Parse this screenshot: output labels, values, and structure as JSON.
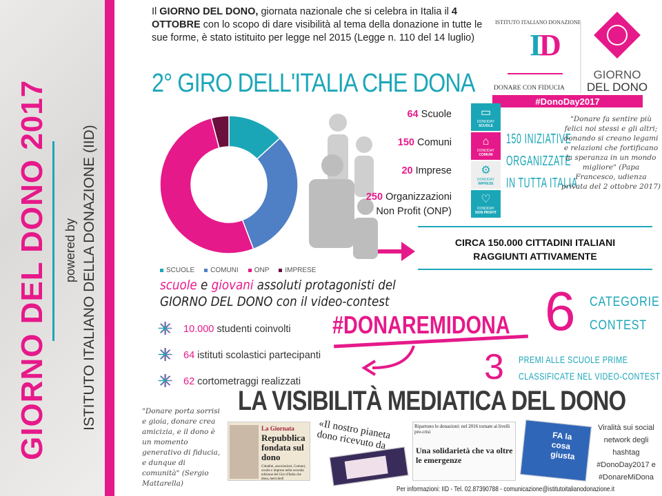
{
  "sidebar": {
    "title": "GIORNO DEL DONO 2017",
    "powered_by": "powered by",
    "institute": "ISTITUTO ITALIANO DELLA DONAZIONE (IID)"
  },
  "intro": {
    "p1": "Il ",
    "b1": "GIORNO DEL DONO,",
    "p2": " giornata nazionale che si celebra in Italia il ",
    "b2": "4 OTTOBRE",
    "p3": " con lo scopo di dare visibilità al tema della donazione in tutte le sue forme, è stato istituito per legge nel 2015 (Legge n. 110 del 14 luglio)"
  },
  "title": "2° GIRO DELL'ITALIA CHE DONA",
  "logo": {
    "arc_text": "ISTITUTO ITALIANO DONAZIONE",
    "mark": "ID",
    "tagline": "DONARE CON FIDUCIA",
    "giorno": "GIORNO",
    "del_dono": "DEL DONO",
    "hashtag": "#DonoDay2017"
  },
  "chart_data": {
    "type": "pie",
    "donut": true,
    "categories": [
      "SCUOLE",
      "COMUNI",
      "ONP",
      "IMPRESE"
    ],
    "values": [
      64,
      150,
      250,
      20
    ],
    "colors": [
      "#1ba6b8",
      "#4f7fc4",
      "#e6198a",
      "#6b0f3c"
    ],
    "legend": "bottom"
  },
  "stats": [
    {
      "num": "64",
      "label": "Scuole",
      "tile": "SCUOLE",
      "icon": "book-icon",
      "color": "#1ba6b8"
    },
    {
      "num": "150",
      "label": "Comuni",
      "tile": "COMUNI",
      "icon": "building-icon",
      "color": "#e6198a"
    },
    {
      "num": "20",
      "label": "Imprese",
      "tile": "IMPRESE",
      "icon": "gears-icon",
      "color": "#eeeeee"
    },
    {
      "num": "250",
      "label": "Organizzazioni Non Profit (ONP)",
      "tile": "NON PROFIT",
      "icon": "heart-icon",
      "color": "#1ba6b8"
    }
  ],
  "tile_prefix": "DONODAY",
  "iniziative": [
    "150 INIZIATIVE",
    "ORGANIZZATE",
    "IN TUTTA ITALIA"
  ],
  "quote_pope": "\"Donare fa sentire più felici noi stessi e gli altri; donando si creano legami e relazioni che fortificano la speranza in un mondo migliore\" (Papa Francesco, udienza privata del 2 ottobre 2017)",
  "circa": [
    "CIRCA 150.000 CITTADINI ITALIANI",
    "RAGGIUNTI ATTIVAMENTE"
  ],
  "schools": {
    "w1": "scuole",
    "w2": " e ",
    "w3": "giovani",
    "w4": " assoluti protagonisti del",
    "line2": "GIORNO DEL DONO con il video-contest"
  },
  "bullets": [
    {
      "num": "10.000",
      "text": " studenti coinvolti"
    },
    {
      "num": "64",
      "text": " istituti scolastici partecipanti"
    },
    {
      "num": "62",
      "text": " cortometraggi realizzati"
    }
  ],
  "hashtag": "#DONAREMIDONA",
  "six": "6",
  "categories": [
    "CATEGORIE",
    "CONTEST"
  ],
  "three": "3",
  "premi": [
    "PREMI ALLE SCUOLE PRIME",
    "CLASSIFICATE NEL VIDEO-CONTEST"
  ],
  "visibility_title": "LA VISIBILITÀ MEDIATICA DEL DONO",
  "quote_mattarella": "\"Donare porta sorrisi e gioia, donare crea amicizia, e il dono è un momento generativo di fiducia, e dunque di comunità\" (Sergio Mattarella)",
  "clips": {
    "c1_head": "La Giornata",
    "c1_title": "Repubblica fondata sul dono",
    "c1_body": "Cittadini, associazioni, Comuni, scuole e imprese nella seconda edizione del Giro d'Italia che dona, mercoledì",
    "c2": "«Il nostro pianeta dono ricevuto da con",
    "c3_head": "Ripartono le donazioni: nel 2016 tornate ai livelli pre-crisi",
    "c3_title": "Una solidarietà che va oltre le emergenze",
    "c4": "FA la cosa giusta"
  },
  "viral": "Viralità sui social network degli hashtag #DonoDay2017 e #DonareMiDona",
  "footer": "Per informazioni: IID - Tel. 02.87390788 - comunicazione@istitutoitalianodonazione.it"
}
